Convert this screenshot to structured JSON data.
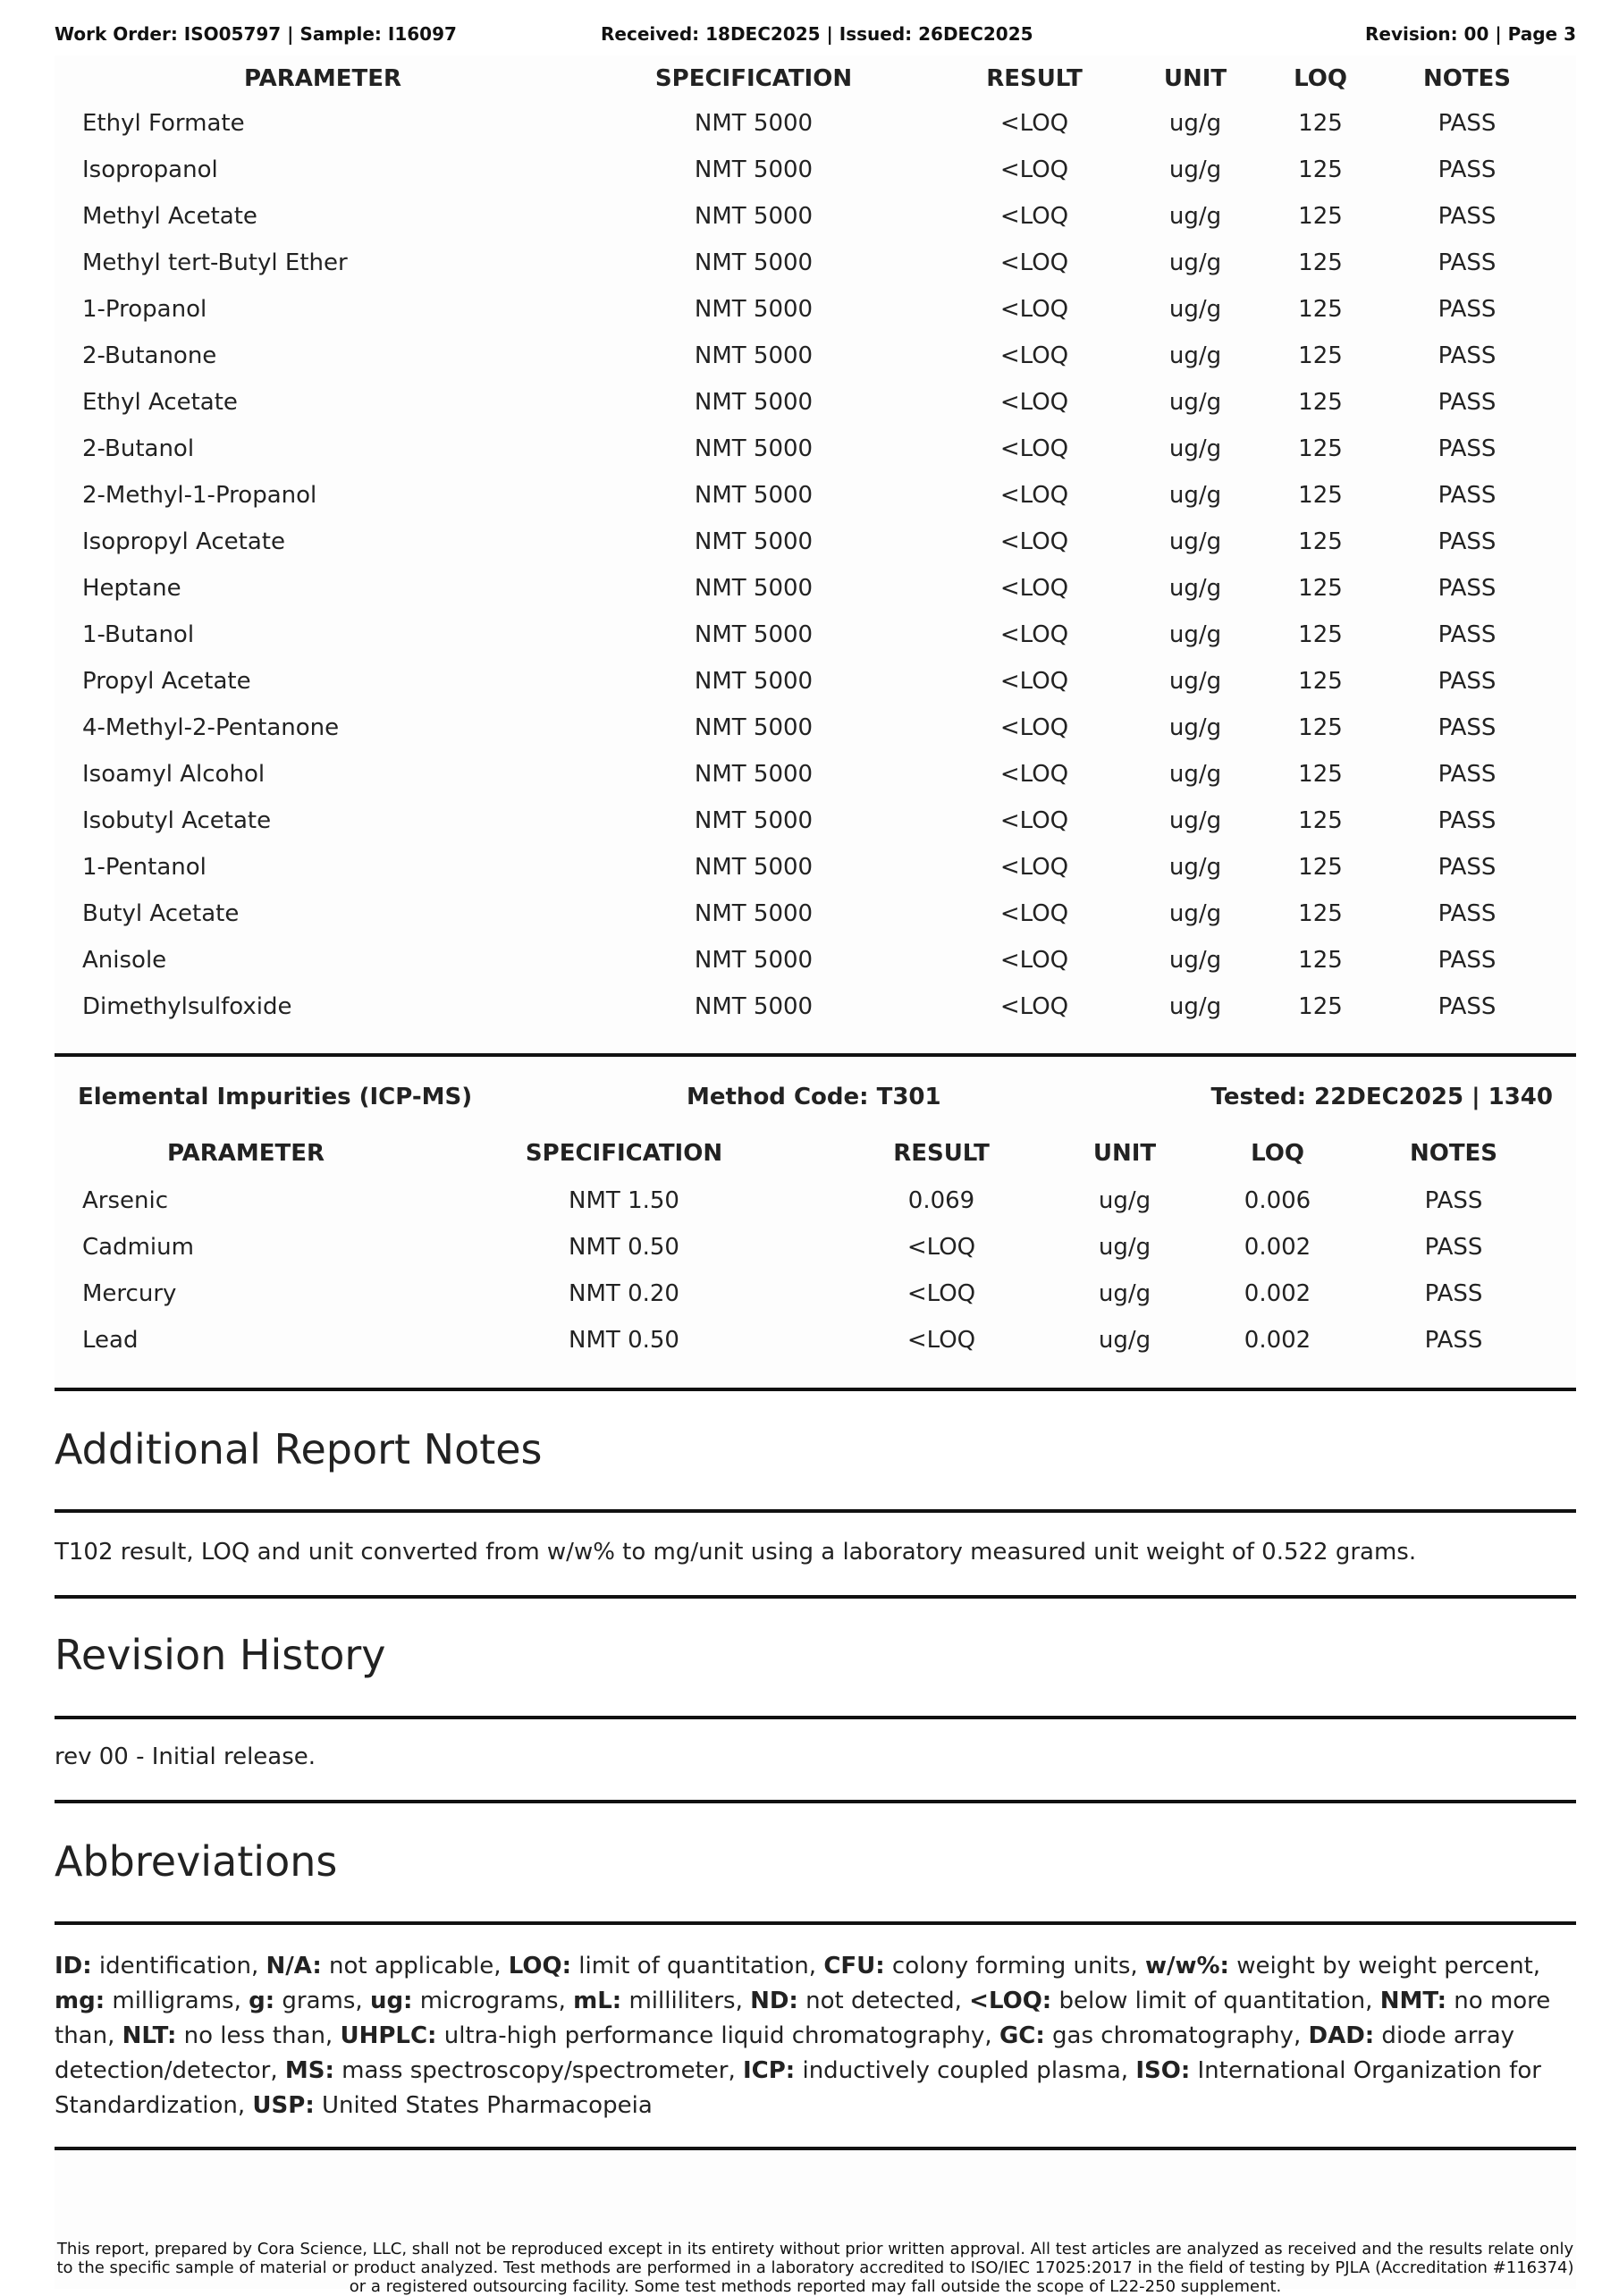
{
  "header": {
    "work_order": "Work Order: ISO05797 | Sample: I16097",
    "dates": "Received: 18DEC2025 | Issued: 26DEC2025",
    "revision": "Revision: 00 | Page 3"
  },
  "solvents_table": {
    "columns": [
      "PARAMETER",
      "SPECIFICATION",
      "RESULT",
      "UNIT",
      "LOQ",
      "NOTES"
    ],
    "rows": [
      [
        "Ethyl Formate",
        "NMT 5000",
        "<LOQ",
        "ug/g",
        "125",
        "PASS"
      ],
      [
        "Isopropanol",
        "NMT 5000",
        "<LOQ",
        "ug/g",
        "125",
        "PASS"
      ],
      [
        "Methyl Acetate",
        "NMT 5000",
        "<LOQ",
        "ug/g",
        "125",
        "PASS"
      ],
      [
        "Methyl tert-Butyl Ether",
        "NMT 5000",
        "<LOQ",
        "ug/g",
        "125",
        "PASS"
      ],
      [
        "1-Propanol",
        "NMT 5000",
        "<LOQ",
        "ug/g",
        "125",
        "PASS"
      ],
      [
        "2-Butanone",
        "NMT 5000",
        "<LOQ",
        "ug/g",
        "125",
        "PASS"
      ],
      [
        "Ethyl Acetate",
        "NMT 5000",
        "<LOQ",
        "ug/g",
        "125",
        "PASS"
      ],
      [
        "2-Butanol",
        "NMT 5000",
        "<LOQ",
        "ug/g",
        "125",
        "PASS"
      ],
      [
        "2-Methyl-1-Propanol",
        "NMT 5000",
        "<LOQ",
        "ug/g",
        "125",
        "PASS"
      ],
      [
        "Isopropyl Acetate",
        "NMT 5000",
        "<LOQ",
        "ug/g",
        "125",
        "PASS"
      ],
      [
        "Heptane",
        "NMT 5000",
        "<LOQ",
        "ug/g",
        "125",
        "PASS"
      ],
      [
        "1-Butanol",
        "NMT 5000",
        "<LOQ",
        "ug/g",
        "125",
        "PASS"
      ],
      [
        "Propyl Acetate",
        "NMT 5000",
        "<LOQ",
        "ug/g",
        "125",
        "PASS"
      ],
      [
        "4-Methyl-2-Pentanone",
        "NMT 5000",
        "<LOQ",
        "ug/g",
        "125",
        "PASS"
      ],
      [
        "Isoamyl Alcohol",
        "NMT 5000",
        "<LOQ",
        "ug/g",
        "125",
        "PASS"
      ],
      [
        "Isobutyl Acetate",
        "NMT 5000",
        "<LOQ",
        "ug/g",
        "125",
        "PASS"
      ],
      [
        "1-Pentanol",
        "NMT 5000",
        "<LOQ",
        "ug/g",
        "125",
        "PASS"
      ],
      [
        "Butyl Acetate",
        "NMT 5000",
        "<LOQ",
        "ug/g",
        "125",
        "PASS"
      ],
      [
        "Anisole",
        "NMT 5000",
        "<LOQ",
        "ug/g",
        "125",
        "PASS"
      ],
      [
        "Dimethylsulfoxide",
        "NMT 5000",
        "<LOQ",
        "ug/g",
        "125",
        "PASS"
      ]
    ]
  },
  "elemental": {
    "title": "Elemental Impurities (ICP-MS)",
    "method": "Method Code: T301",
    "tested": "Tested: 22DEC2025 | 1340",
    "columns": [
      "PARAMETER",
      "SPECIFICATION",
      "RESULT",
      "UNIT",
      "LOQ",
      "NOTES"
    ],
    "rows": [
      [
        "Arsenic",
        "NMT 1.50",
        "0.069",
        "ug/g",
        "0.006",
        "PASS"
      ],
      [
        "Cadmium",
        "NMT 0.50",
        "<LOQ",
        "ug/g",
        "0.002",
        "PASS"
      ],
      [
        "Mercury",
        "NMT 0.20",
        "<LOQ",
        "ug/g",
        "0.002",
        "PASS"
      ],
      [
        "Lead",
        "NMT 0.50",
        "<LOQ",
        "ug/g",
        "0.002",
        "PASS"
      ]
    ]
  },
  "notes": {
    "title": "Additional Report Notes",
    "text": "T102 result, LOQ and unit converted from w/w% to mg/unit using a laboratory measured unit weight of 0.522 grams."
  },
  "revision_history": {
    "title": "Revision History",
    "text": "rev 00 - Initial release."
  },
  "abbreviations": {
    "title": "Abbreviations",
    "items": [
      {
        "term": "ID:",
        "def": " identification, "
      },
      {
        "term": "N/A:",
        "def": " not applicable, "
      },
      {
        "term": "LOQ:",
        "def": " limit of quantitation, "
      },
      {
        "term": "CFU:",
        "def": " colony forming units, "
      },
      {
        "term": "w/w%:",
        "def": " weight by weight percent, "
      },
      {
        "term": "mg:",
        "def": " milligrams, "
      },
      {
        "term": "g:",
        "def": " grams, "
      },
      {
        "term": "ug:",
        "def": " micrograms, "
      },
      {
        "term": "mL:",
        "def": " milliliters, "
      },
      {
        "term": "ND:",
        "def": " not detected, "
      },
      {
        "term": "<LOQ:",
        "def": " below limit of quantitation, "
      },
      {
        "term": "NMT:",
        "def": " no more than, "
      },
      {
        "term": "NLT:",
        "def": " no less than, "
      },
      {
        "term": "UHPLC:",
        "def": " ultra-high performance liquid chromatography, "
      },
      {
        "term": "GC:",
        "def": " gas chromatography, "
      },
      {
        "term": "DAD:",
        "def": " diode array detection/detector, "
      },
      {
        "term": "MS:",
        "def": " mass spectroscopy/spectrometer, "
      },
      {
        "term": "ICP:",
        "def": " inductively coupled plasma, "
      },
      {
        "term": "ISO:",
        "def": " International Organization for Standardization, "
      },
      {
        "term": "USP:",
        "def": " United States Pharmacopeia"
      }
    ]
  },
  "footer": {
    "disclaimer": "This report, prepared by Cora Science, LLC, shall not be reproduced except in its entirety without prior written approval. All test articles are analyzed as received and the results relate only to the specific sample of material or product analyzed. Test methods are performed in a laboratory accredited to ISO/IEC 17025:2017 in the field of testing by PJLA (Accreditation #116374) or a registered outsourcing facility. Some test methods reported may fall outside the scope of L22-250 supplement."
  }
}
